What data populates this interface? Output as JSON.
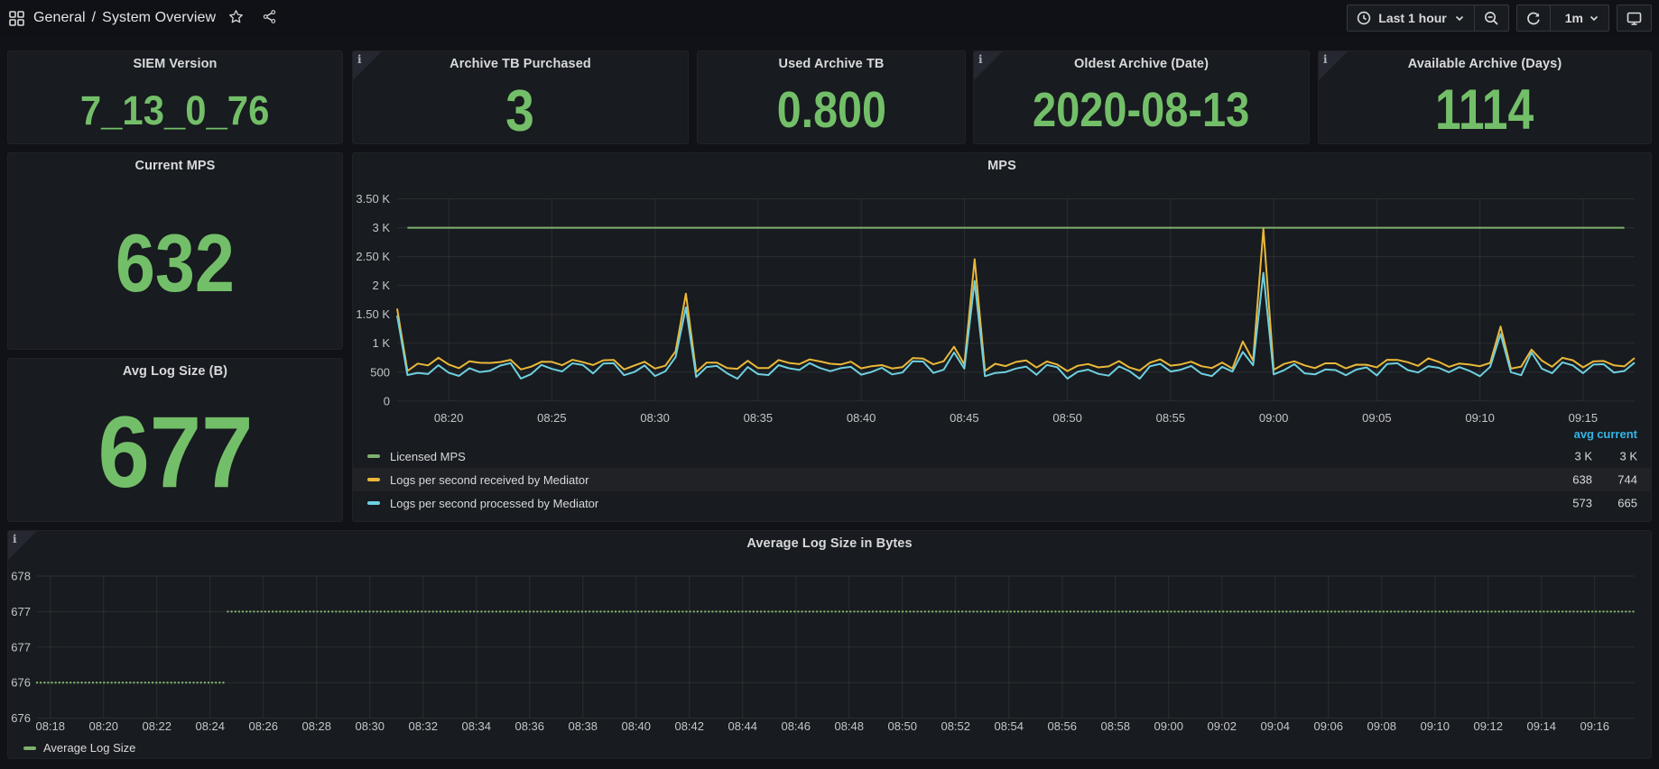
{
  "navbar": {
    "breadcrumb": {
      "folder": "General",
      "separator": "/",
      "dashboard": "System Overview"
    },
    "time_picker": {
      "label": "Last 1 hour"
    },
    "refresh": {
      "interval": "1m"
    }
  },
  "stat_panels": [
    {
      "title": "SIEM Version",
      "value": "7_13_0_76"
    },
    {
      "title": "Archive TB Purchased",
      "value": "3"
    },
    {
      "title": "Used Archive TB",
      "value": "0.800"
    },
    {
      "title": "Oldest Archive (Date)",
      "value": "2020-08-13"
    },
    {
      "title": "Available Archive (Days)",
      "value": "1114"
    },
    {
      "title": "Current MPS",
      "value": "632"
    },
    {
      "title": "Avg Log Size (B)",
      "value": "677"
    }
  ],
  "colors": {
    "stat_value": "#73BF69",
    "green": "#7EB26D",
    "yellow": "#EAB839",
    "cyan": "#6ED0E0",
    "legend_header": "#33B5E5"
  },
  "chart_data": [
    {
      "type": "line",
      "title": "MPS",
      "x_range_min": [
        17.5,
        77.5
      ],
      "x_ticks": [
        {
          "min": 20,
          "label": "08:20"
        },
        {
          "min": 25,
          "label": "08:25"
        },
        {
          "min": 30,
          "label": "08:30"
        },
        {
          "min": 35,
          "label": "08:35"
        },
        {
          "min": 40,
          "label": "08:40"
        },
        {
          "min": 45,
          "label": "08:45"
        },
        {
          "min": 50,
          "label": "08:50"
        },
        {
          "min": 55,
          "label": "08:55"
        },
        {
          "min": 60,
          "label": "09:00"
        },
        {
          "min": 65,
          "label": "09:05"
        },
        {
          "min": 70,
          "label": "09:10"
        },
        {
          "min": 75,
          "label": "09:15"
        }
      ],
      "ylim": [
        0,
        3500
      ],
      "y_ticks": [
        {
          "v": 0,
          "label": "0"
        },
        {
          "v": 500,
          "label": "500"
        },
        {
          "v": 1000,
          "label": "1 K"
        },
        {
          "v": 1500,
          "label": "1.50 K"
        },
        {
          "v": 2000,
          "label": "2 K"
        },
        {
          "v": 2500,
          "label": "2.50 K"
        },
        {
          "v": 3000,
          "label": "3 K"
        },
        {
          "v": 3500,
          "label": "3.50 K"
        }
      ],
      "series": [
        {
          "name": "Licensed MPS",
          "color": "#7EB26D",
          "type": "flat",
          "start_min": 18.0,
          "end_min": 77.0,
          "value": 3000
        },
        {
          "name": "Logs per second received by Mediator",
          "color": "#EAB839",
          "type": "points",
          "start_min": 17.5,
          "step_min": 0.5,
          "values": [
            1600,
            520,
            648,
            616,
            750,
            632,
            568,
            687,
            662,
            659,
            674,
            714,
            547,
            595,
            679,
            677,
            620,
            713,
            673,
            623,
            705,
            710,
            546,
            615,
            679,
            562,
            610,
            860,
            1860,
            500,
            663,
            665,
            572,
            557,
            696,
            570,
            570,
            711,
            659,
            638,
            720,
            686,
            644,
            632,
            681,
            565,
            603,
            622,
            563,
            587,
            744,
            734,
            635,
            689,
            940,
            630,
            2455,
            520,
            645,
            604,
            676,
            703,
            579,
            683,
            633,
            519,
            610,
            640,
            583,
            599,
            691,
            581,
            527,
            664,
            721,
            612,
            634,
            681,
            603,
            571,
            667,
            562,
            1030,
            700,
            2980,
            540,
            641,
            687,
            617,
            570,
            652,
            652,
            565,
            629,
            628,
            582,
            713,
            712,
            672,
            609,
            740,
            677,
            591,
            649,
            630,
            602,
            661,
            1290,
            560,
            595,
            890,
            700,
            594,
            747,
            705,
            582,
            685,
            693,
            616,
            600,
            744
          ]
        },
        {
          "name": "Logs per second processed by Mediator",
          "color": "#6ED0E0",
          "type": "points",
          "start_min": 17.5,
          "step_min": 0.5,
          "values": [
            1480,
            450,
            487,
            467,
            620,
            490,
            434,
            569,
            501,
            523,
            614,
            655,
            388,
            466,
            625,
            556,
            512,
            653,
            623,
            478,
            650,
            654,
            447,
            503,
            615,
            432,
            514,
            760,
            1620,
            415,
            589,
            608,
            479,
            385,
            588,
            465,
            449,
            622,
            567,
            537,
            656,
            571,
            517,
            569,
            592,
            456,
            502,
            574,
            461,
            493,
            689,
            683,
            486,
            542,
            840,
            560,
            2080,
            430,
            485,
            501,
            562,
            596,
            454,
            625,
            586,
            387,
            507,
            543,
            470,
            439,
            599,
            518,
            385,
            601,
            643,
            510,
            541,
            608,
            473,
            433,
            591,
            509,
            850,
            620,
            2220,
            460,
            533,
            639,
            480,
            460,
            547,
            536,
            447,
            544,
            582,
            444,
            641,
            654,
            536,
            494,
            603,
            575,
            498,
            587,
            521,
            430,
            593,
            1160,
            500,
            446,
            840,
            560,
            482,
            670,
            617,
            483,
            630,
            637,
            491,
            520,
            665
          ]
        }
      ],
      "legend": {
        "headers": [
          "avg",
          "current"
        ],
        "rows": [
          {
            "label": "Licensed MPS",
            "color": "#7EB26D",
            "avg": "3 K",
            "current": "3 K",
            "highlight": false
          },
          {
            "label": "Logs per second received by Mediator",
            "color": "#EAB839",
            "avg": "638",
            "current": "744",
            "highlight": true
          },
          {
            "label": "Logs per second processed by Mediator",
            "color": "#6ED0E0",
            "avg": "573",
            "current": "665",
            "highlight": false
          }
        ]
      }
    },
    {
      "type": "points",
      "title": "Average Log Size in Bytes",
      "x_range_min": [
        17.5,
        77.5
      ],
      "x_ticks": [
        {
          "min": 18,
          "label": "08:18"
        },
        {
          "min": 20,
          "label": "08:20"
        },
        {
          "min": 22,
          "label": "08:22"
        },
        {
          "min": 24,
          "label": "08:24"
        },
        {
          "min": 26,
          "label": "08:26"
        },
        {
          "min": 28,
          "label": "08:28"
        },
        {
          "min": 30,
          "label": "08:30"
        },
        {
          "min": 32,
          "label": "08:32"
        },
        {
          "min": 34,
          "label": "08:34"
        },
        {
          "min": 36,
          "label": "08:36"
        },
        {
          "min": 38,
          "label": "08:38"
        },
        {
          "min": 40,
          "label": "08:40"
        },
        {
          "min": 42,
          "label": "08:42"
        },
        {
          "min": 44,
          "label": "08:44"
        },
        {
          "min": 46,
          "label": "08:46"
        },
        {
          "min": 48,
          "label": "08:48"
        },
        {
          "min": 50,
          "label": "08:50"
        },
        {
          "min": 52,
          "label": "08:52"
        },
        {
          "min": 54,
          "label": "08:54"
        },
        {
          "min": 56,
          "label": "08:56"
        },
        {
          "min": 58,
          "label": "08:58"
        },
        {
          "min": 60,
          "label": "09:00"
        },
        {
          "min": 62,
          "label": "09:02"
        },
        {
          "min": 64,
          "label": "09:04"
        },
        {
          "min": 66,
          "label": "09:06"
        },
        {
          "min": 68,
          "label": "09:08"
        },
        {
          "min": 70,
          "label": "09:10"
        },
        {
          "min": 72,
          "label": "09:12"
        },
        {
          "min": 74,
          "label": "09:14"
        },
        {
          "min": 76,
          "label": "09:16"
        }
      ],
      "ylim": [
        675.5,
        677.5
      ],
      "y_ticks": [
        {
          "v": 675.5,
          "label": "676"
        },
        {
          "v": 676,
          "label": "676"
        },
        {
          "v": 676.5,
          "label": "677"
        },
        {
          "v": 677,
          "label": "677"
        },
        {
          "v": 677.5,
          "label": "678"
        }
      ],
      "point_interval_min": 0.14,
      "segments": [
        {
          "from_min": 17.5,
          "to_min": 24.5,
          "value": 676
        },
        {
          "from_min": 24.67,
          "to_min": 77.5,
          "value": 677
        }
      ],
      "series_color": "#7EB26D",
      "legend": {
        "rows": [
          {
            "label": "Average Log Size",
            "color": "#7EB26D"
          }
        ]
      }
    }
  ]
}
